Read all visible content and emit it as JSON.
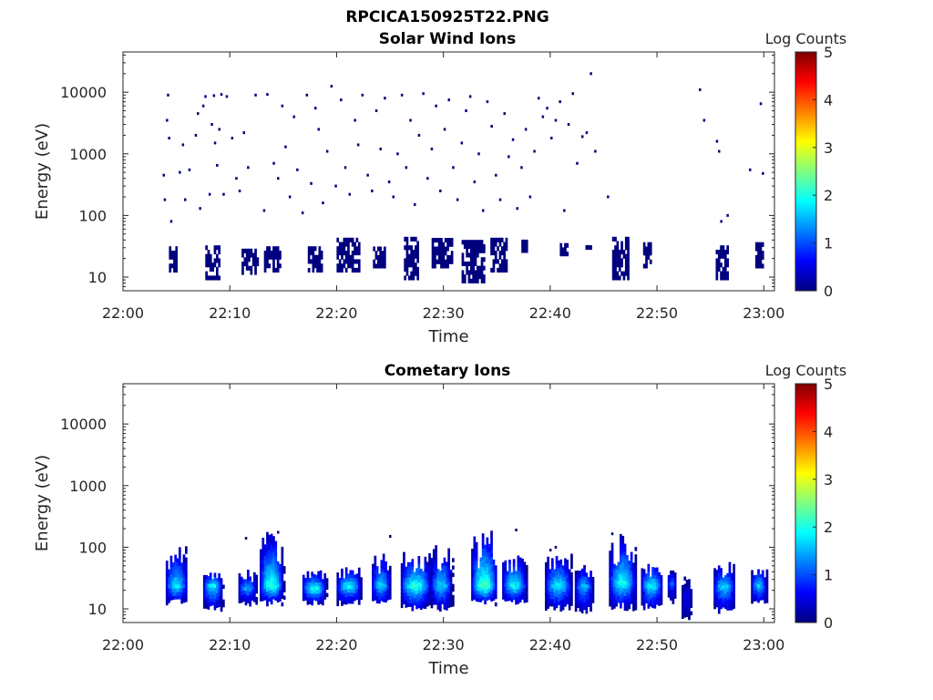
{
  "figure_title": "RPCICA150925T22.PNG",
  "colormap": {
    "name": "jet",
    "stops": [
      "#00007f",
      "#0000ff",
      "#007fff",
      "#00ffff",
      "#7fff7f",
      "#ffff00",
      "#ff7f00",
      "#ff0000",
      "#7f0000"
    ]
  },
  "chart_data": [
    {
      "type": "heatmap",
      "title": "Solar Wind Ions",
      "xlabel": "Time",
      "ylabel": "Energy (eV)",
      "y_scale": "log",
      "xlim": [
        "22:00",
        "23:01"
      ],
      "ylim": [
        6,
        45000
      ],
      "x_ticks": [
        "22:00",
        "22:10",
        "22:20",
        "22:30",
        "22:40",
        "22:50",
        "23:00"
      ],
      "y_ticks": [
        {
          "value": 10,
          "label": "10"
        },
        {
          "value": 100,
          "label": "100"
        },
        {
          "value": 1000,
          "label": "1000"
        },
        {
          "value": 10000,
          "label": "10000"
        }
      ],
      "colorbar": {
        "label": "Log Counts",
        "range": [
          0,
          5
        ],
        "ticks": [
          "0",
          "1",
          "2",
          "3",
          "4",
          "5"
        ]
      },
      "sparse_points_log_counts": 0,
      "sparse_points": [
        {
          "t": "22:03.8",
          "e": 450
        },
        {
          "t": "22:03.9",
          "e": 180
        },
        {
          "t": "22:04.1",
          "e": 3500
        },
        {
          "t": "22:04.2",
          "e": 9000
        },
        {
          "t": "22:04.3",
          "e": 1800
        },
        {
          "t": "22:04.5",
          "e": 80
        },
        {
          "t": "22:05.3",
          "e": 500
        },
        {
          "t": "22:05.6",
          "e": 1400
        },
        {
          "t": "22:05.8",
          "e": 180
        },
        {
          "t": "22:06.2",
          "e": 550
        },
        {
          "t": "22:06.8",
          "e": 2000
        },
        {
          "t": "22:07.0",
          "e": 4500
        },
        {
          "t": "22:07.2",
          "e": 130
        },
        {
          "t": "22:07.5",
          "e": 6000
        },
        {
          "t": "22:07.7",
          "e": 8500
        },
        {
          "t": "22:08.1",
          "e": 220
        },
        {
          "t": "22:08.3",
          "e": 3000
        },
        {
          "t": "22:08.5",
          "e": 8800
        },
        {
          "t": "22:08.6",
          "e": 1500
        },
        {
          "t": "22:08.8",
          "e": 650
        },
        {
          "t": "22:09.0",
          "e": 2500
        },
        {
          "t": "22:09.2",
          "e": 9200
        },
        {
          "t": "22:09.4",
          "e": 220
        },
        {
          "t": "22:09.7",
          "e": 8500
        },
        {
          "t": "22:10.2",
          "e": 1800
        },
        {
          "t": "22:10.6",
          "e": 400
        },
        {
          "t": "22:10.9",
          "e": 250
        },
        {
          "t": "22:11.3",
          "e": 2200
        },
        {
          "t": "22:11.7",
          "e": 600
        },
        {
          "t": "22:12.4",
          "e": 9000
        },
        {
          "t": "22:13.2",
          "e": 120
        },
        {
          "t": "22:13.5",
          "e": 9200
        },
        {
          "t": "22:14.1",
          "e": 700
        },
        {
          "t": "22:14.5",
          "e": 400
        },
        {
          "t": "22:14.9",
          "e": 6000
        },
        {
          "t": "22:15.2",
          "e": 1300
        },
        {
          "t": "22:15.6",
          "e": 200
        },
        {
          "t": "22:16.0",
          "e": 4000
        },
        {
          "t": "22:16.3",
          "e": 550
        },
        {
          "t": "22:16.8",
          "e": 110
        },
        {
          "t": "22:17.2",
          "e": 9000
        },
        {
          "t": "22:17.6",
          "e": 330
        },
        {
          "t": "22:18.0",
          "e": 5500
        },
        {
          "t": "22:18.3",
          "e": 2500
        },
        {
          "t": "22:18.7",
          "e": 160
        },
        {
          "t": "22:19.1",
          "e": 1100
        },
        {
          "t": "22:19.5",
          "e": 12500
        },
        {
          "t": "22:19.9",
          "e": 300
        },
        {
          "t": "22:20.4",
          "e": 7500
        },
        {
          "t": "22:20.8",
          "e": 600
        },
        {
          "t": "22:21.2",
          "e": 220
        },
        {
          "t": "22:21.7",
          "e": 3500
        },
        {
          "t": "22:22.0",
          "e": 1400
        },
        {
          "t": "22:22.4",
          "e": 9000
        },
        {
          "t": "22:22.9",
          "e": 450
        },
        {
          "t": "22:23.3",
          "e": 250
        },
        {
          "t": "22:23.7",
          "e": 5000
        },
        {
          "t": "22:24.1",
          "e": 1200
        },
        {
          "t": "22:24.5",
          "e": 8000
        },
        {
          "t": "22:24.9",
          "e": 350
        },
        {
          "t": "22:25.3",
          "e": 200
        },
        {
          "t": "22:25.7",
          "e": 1000
        },
        {
          "t": "22:26.1",
          "e": 9000
        },
        {
          "t": "22:26.5",
          "e": 600
        },
        {
          "t": "22:26.9",
          "e": 3500
        },
        {
          "t": "22:27.3",
          "e": 150
        },
        {
          "t": "22:27.7",
          "e": 2000
        },
        {
          "t": "22:28.1",
          "e": 9500
        },
        {
          "t": "22:28.5",
          "e": 400
        },
        {
          "t": "22:28.9",
          "e": 1200
        },
        {
          "t": "22:29.3",
          "e": 6000
        },
        {
          "t": "22:29.7",
          "e": 250
        },
        {
          "t": "22:30.1",
          "e": 2500
        },
        {
          "t": "22:30.5",
          "e": 7500
        },
        {
          "t": "22:30.9",
          "e": 600
        },
        {
          "t": "22:31.3",
          "e": 180
        },
        {
          "t": "22:31.7",
          "e": 1500
        },
        {
          "t": "22:32.1",
          "e": 5000
        },
        {
          "t": "22:32.5",
          "e": 8500
        },
        {
          "t": "22:32.9",
          "e": 350
        },
        {
          "t": "22:33.3",
          "e": 1000
        },
        {
          "t": "22:33.7",
          "e": 120
        },
        {
          "t": "22:34.1",
          "e": 7000
        },
        {
          "t": "22:34.5",
          "e": 2800
        },
        {
          "t": "22:34.9",
          "e": 450
        },
        {
          "t": "22:35.3",
          "e": 180
        },
        {
          "t": "22:35.7",
          "e": 4500
        },
        {
          "t": "22:36.1",
          "e": 900
        },
        {
          "t": "22:36.5",
          "e": 1700
        },
        {
          "t": "22:36.9",
          "e": 130
        },
        {
          "t": "22:37.3",
          "e": 600
        },
        {
          "t": "22:37.7",
          "e": 2500
        },
        {
          "t": "22:38.1",
          "e": 200
        },
        {
          "t": "22:38.5",
          "e": 1100
        },
        {
          "t": "22:38.9",
          "e": 8000
        },
        {
          "t": "22:39.3",
          "e": 4000
        },
        {
          "t": "22:39.7",
          "e": 5500
        },
        {
          "t": "22:40.1",
          "e": 1800
        },
        {
          "t": "22:40.5",
          "e": 3500
        },
        {
          "t": "22:40.9",
          "e": 7000
        },
        {
          "t": "22:41.3",
          "e": 120
        },
        {
          "t": "22:41.7",
          "e": 3000
        },
        {
          "t": "22:42.1",
          "e": 9500
        },
        {
          "t": "22:42.5",
          "e": 700
        },
        {
          "t": "22:43.0",
          "e": 1900
        },
        {
          "t": "22:43.4",
          "e": 2200
        },
        {
          "t": "22:43.8",
          "e": 20000
        },
        {
          "t": "22:44.2",
          "e": 1100
        },
        {
          "t": "22:45.4",
          "e": 200
        },
        {
          "t": "22:54.0",
          "e": 11000
        },
        {
          "t": "22:54.4",
          "e": 3500
        },
        {
          "t": "22:55.6",
          "e": 1600
        },
        {
          "t": "22:55.8",
          "e": 1100
        },
        {
          "t": "22:56.0",
          "e": 80
        },
        {
          "t": "22:56.6",
          "e": 100
        },
        {
          "t": "22:58.7",
          "e": 550
        },
        {
          "t": "22:59.7",
          "e": 6500
        },
        {
          "t": "22:59.9",
          "e": 480
        }
      ],
      "low_energy_bursts_log_counts": 0,
      "low_energy_bursts": [
        {
          "start": "22:04.3",
          "end": "22:05.0",
          "emin": 12,
          "emax": 30
        },
        {
          "start": "22:07.7",
          "end": "22:08.9",
          "emin": 9,
          "emax": 30
        },
        {
          "start": "22:11.1",
          "end": "22:12.6",
          "emin": 11,
          "emax": 26
        },
        {
          "start": "22:13.2",
          "end": "22:14.6",
          "emin": 12,
          "emax": 30
        },
        {
          "start": "22:17.3",
          "end": "22:18.6",
          "emin": 12,
          "emax": 30
        },
        {
          "start": "22:20.0",
          "end": "22:22.0",
          "emin": 12,
          "emax": 40
        },
        {
          "start": "22:23.4",
          "end": "22:24.4",
          "emin": 14,
          "emax": 30
        },
        {
          "start": "22:26.3",
          "end": "22:27.6",
          "emin": 9,
          "emax": 40
        },
        {
          "start": "22:28.9",
          "end": "22:30.8",
          "emin": 14,
          "emax": 40
        },
        {
          "start": "22:31.7",
          "end": "22:33.8",
          "emin": 8,
          "emax": 40
        },
        {
          "start": "22:34.4",
          "end": "22:36.0",
          "emin": 12,
          "emax": 42
        },
        {
          "start": "22:37.3",
          "end": "22:37.9",
          "emin": 25,
          "emax": 35
        },
        {
          "start": "22:40.9",
          "end": "22:41.6",
          "emin": 22,
          "emax": 35
        },
        {
          "start": "22:43.3",
          "end": "22:43.8",
          "emin": 28,
          "emax": 32
        },
        {
          "start": "22:45.8",
          "end": "22:47.3",
          "emin": 9,
          "emax": 42
        },
        {
          "start": "22:48.7",
          "end": "22:49.5",
          "emin": 14,
          "emax": 32
        },
        {
          "start": "22:55.5",
          "end": "22:56.6",
          "emin": 9,
          "emax": 32
        },
        {
          "start": "22:59.2",
          "end": "22:59.9",
          "emin": 14,
          "emax": 32
        }
      ]
    },
    {
      "type": "heatmap",
      "title": "Cometary Ions",
      "xlabel": "Time",
      "ylabel": "Energy (eV)",
      "y_scale": "log",
      "xlim": [
        "22:00",
        "23:01"
      ],
      "ylim": [
        6,
        45000
      ],
      "x_ticks": [
        "22:00",
        "22:10",
        "22:20",
        "22:30",
        "22:40",
        "22:50",
        "23:00"
      ],
      "y_ticks": [
        {
          "value": 10,
          "label": "10"
        },
        {
          "value": 100,
          "label": "100"
        },
        {
          "value": 1000,
          "label": "1000"
        },
        {
          "value": 10000,
          "label": "10000"
        }
      ],
      "colorbar": {
        "label": "Log Counts",
        "range": [
          0,
          5
        ],
        "ticks": [
          "0",
          "1",
          "2",
          "3",
          "4",
          "5"
        ]
      },
      "bursts": [
        {
          "start": "22:04.0",
          "end": "22:06.0",
          "emin": 11,
          "emax": 95,
          "peak_energy": 22,
          "peak_log_counts": 1.9
        },
        {
          "start": "22:07.5",
          "end": "22:09.3",
          "emin": 9,
          "emax": 38,
          "peak_energy": 22,
          "peak_log_counts": 2.0
        },
        {
          "start": "22:10.8",
          "end": "22:12.5",
          "emin": 11,
          "emax": 45,
          "peak_energy": 20,
          "peak_log_counts": 1.5
        },
        {
          "start": "22:12.8",
          "end": "22:15.0",
          "emin": 11,
          "emax": 170,
          "peak_energy": 22,
          "peak_log_counts": 2.2
        },
        {
          "start": "22:16.8",
          "end": "22:19.0",
          "emin": 11,
          "emax": 40,
          "peak_energy": 20,
          "peak_log_counts": 2.1
        },
        {
          "start": "22:20.0",
          "end": "22:22.3",
          "emin": 11,
          "emax": 45,
          "peak_energy": 22,
          "peak_log_counts": 2.0
        },
        {
          "start": "22:23.3",
          "end": "22:25.0",
          "emin": 11,
          "emax": 80,
          "peak_energy": 22,
          "peak_log_counts": 1.8
        },
        {
          "start": "22:26.0",
          "end": "22:28.8",
          "emin": 9,
          "emax": 80,
          "peak_energy": 22,
          "peak_log_counts": 2.2
        },
        {
          "start": "22:28.8",
          "end": "22:30.8",
          "emin": 9,
          "emax": 100,
          "peak_energy": 22,
          "peak_log_counts": 1.8
        },
        {
          "start": "22:32.6",
          "end": "22:35.0",
          "emin": 11,
          "emax": 170,
          "peak_energy": 22,
          "peak_log_counts": 2.4
        },
        {
          "start": "22:35.5",
          "end": "22:37.8",
          "emin": 11,
          "emax": 80,
          "peak_energy": 22,
          "peak_log_counts": 2.0
        },
        {
          "start": "22:39.5",
          "end": "22:42.0",
          "emin": 9,
          "emax": 80,
          "peak_energy": 22,
          "peak_log_counts": 1.9
        },
        {
          "start": "22:42.3",
          "end": "22:44.0",
          "emin": 8,
          "emax": 50,
          "peak_energy": 22,
          "peak_log_counts": 1.6
        },
        {
          "start": "22:45.5",
          "end": "22:48.0",
          "emin": 9,
          "emax": 150,
          "peak_energy": 25,
          "peak_log_counts": 2.1
        },
        {
          "start": "22:48.5",
          "end": "22:50.5",
          "emin": 9,
          "emax": 60,
          "peak_energy": 22,
          "peak_log_counts": 2.0
        },
        {
          "start": "22:51.0",
          "end": "22:51.8",
          "emin": 12,
          "emax": 40,
          "peak_energy": 25,
          "peak_log_counts": 1.2
        },
        {
          "start": "22:52.3",
          "end": "22:53.3",
          "emin": 6,
          "emax": 30,
          "peak_energy": 15,
          "peak_log_counts": 0.6
        },
        {
          "start": "22:55.3",
          "end": "22:57.3",
          "emin": 8,
          "emax": 55,
          "peak_energy": 22,
          "peak_log_counts": 1.8
        },
        {
          "start": "22:58.8",
          "end": "23:00.3",
          "emin": 11,
          "emax": 50,
          "peak_energy": 22,
          "peak_log_counts": 1.7
        }
      ],
      "sparse_points_log_counts": 0,
      "sparse_points": [
        {
          "t": "22:11.5",
          "e": 140
        },
        {
          "t": "22:14.5",
          "e": 175
        },
        {
          "t": "22:25.0",
          "e": 150
        },
        {
          "t": "22:36.8",
          "e": 190
        },
        {
          "t": "22:40.0",
          "e": 90
        },
        {
          "t": "22:40.5",
          "e": 100
        },
        {
          "t": "22:45.8",
          "e": 165
        }
      ]
    }
  ]
}
